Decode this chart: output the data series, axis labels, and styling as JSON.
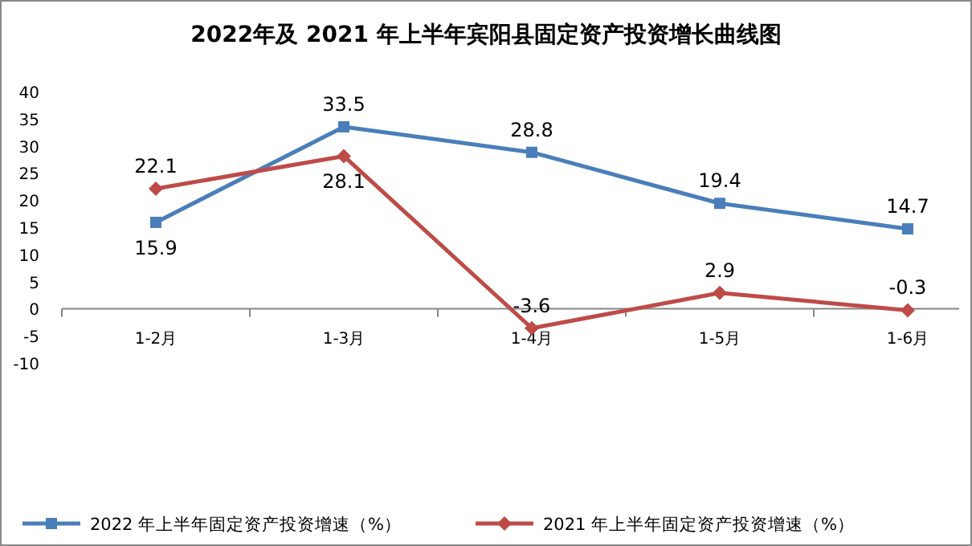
{
  "chart_data": {
    "type": "line",
    "title": "2022年及 2021 年上半年宾阳县固定资产投资增长曲线图",
    "categories": [
      "1-2月",
      "1-3月",
      "1-4月",
      "1-5月",
      "1-6月"
    ],
    "series": [
      {
        "name": "2022 年上半年固定资产投资增速（%）",
        "color": "#4a7ebb",
        "marker": "square",
        "values": [
          15.9,
          33.5,
          28.8,
          19.4,
          14.7
        ]
      },
      {
        "name": "2021 年上半年固定资产投资增速（%）",
        "color": "#be4b48",
        "marker": "diamond",
        "values": [
          22.1,
          28.1,
          -3.6,
          2.9,
          -0.3
        ]
      }
    ],
    "ylim": [
      -10,
      40
    ],
    "yticks": [
      -10,
      -5,
      0,
      5,
      10,
      15,
      20,
      25,
      30,
      35,
      40
    ],
    "data_labels": true,
    "legend": "bottom",
    "grid": false
  }
}
